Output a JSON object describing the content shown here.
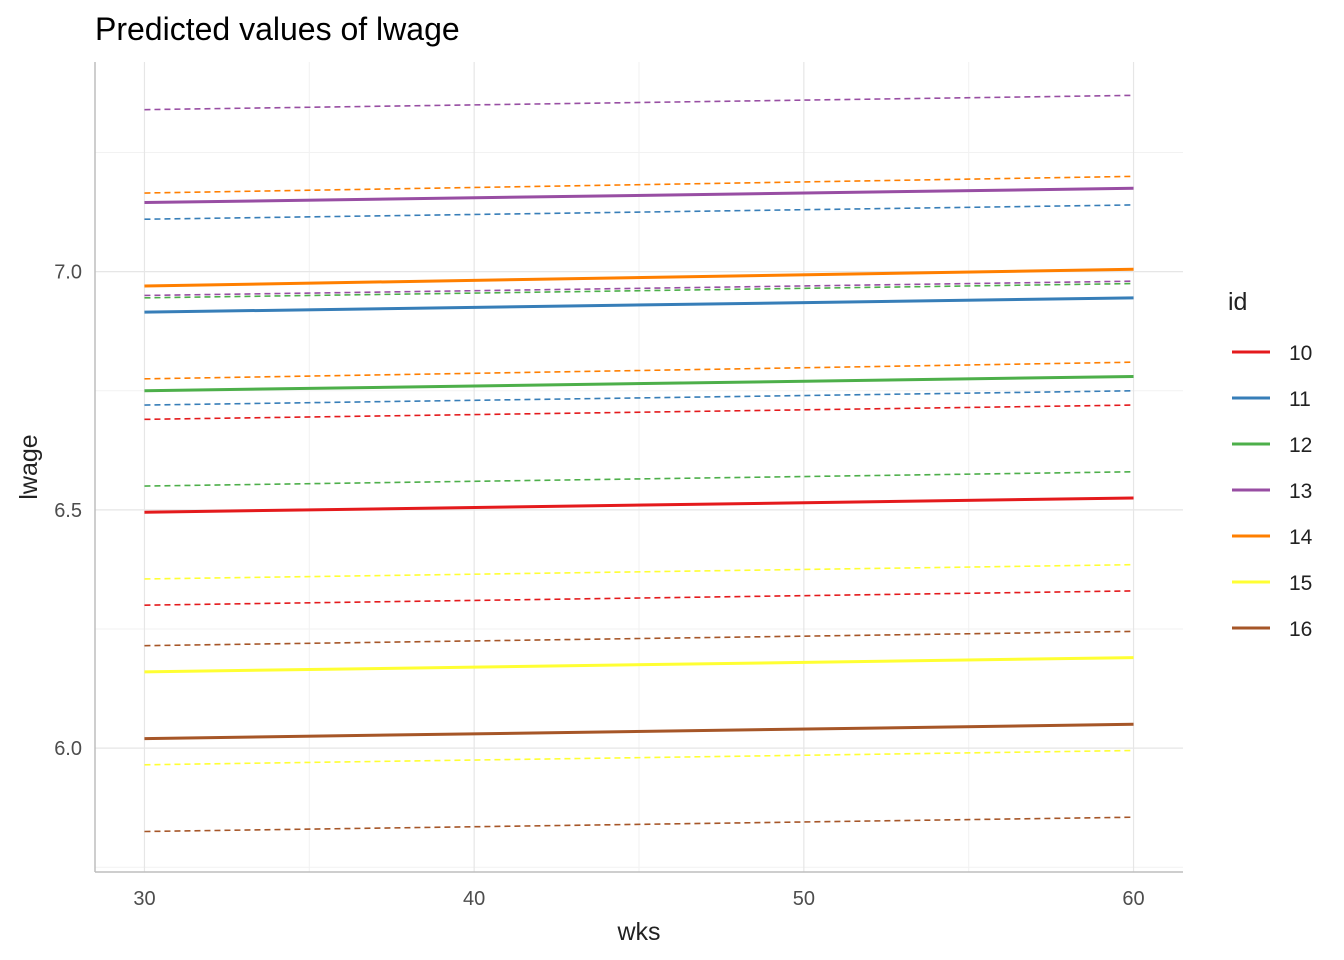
{
  "chart_data": {
    "type": "line",
    "title": "Predicted values of lwage",
    "xlabel": "wks",
    "ylabel": "lwage",
    "xlim": [
      28.5,
      61.5
    ],
    "ylim": [
      5.74,
      7.44
    ],
    "x_ticks": [
      30,
      40,
      50,
      60
    ],
    "y_ticks": [
      6.0,
      6.5,
      7.0
    ],
    "x_tick_labels": [
      "30",
      "40",
      "50",
      "60"
    ],
    "y_tick_labels": [
      "6.0",
      "6.5",
      "7.0"
    ],
    "grid": true,
    "legend": {
      "title": "id",
      "position": "right"
    },
    "x": [
      30,
      60
    ],
    "series": [
      {
        "name": "10",
        "color": "#E41A1C",
        "values": [
          6.495,
          6.525
        ],
        "ci_lower": [
          6.3,
          6.33
        ],
        "ci_upper": [
          6.69,
          6.72
        ]
      },
      {
        "name": "11",
        "color": "#377EB8",
        "values": [
          6.915,
          6.945
        ],
        "ci_lower": [
          6.72,
          6.75
        ],
        "ci_upper": [
          7.11,
          7.14
        ]
      },
      {
        "name": "12",
        "color": "#4DAF4A",
        "values": [
          6.75,
          6.78
        ],
        "ci_lower": [
          6.55,
          6.58
        ],
        "ci_upper": [
          6.945,
          6.975
        ]
      },
      {
        "name": "13",
        "color": "#984EA3",
        "values": [
          7.145,
          7.175
        ],
        "ci_lower": [
          6.95,
          6.98
        ],
        "ci_upper": [
          7.34,
          7.37
        ]
      },
      {
        "name": "14",
        "color": "#FF7F00",
        "values": [
          6.97,
          7.005
        ],
        "ci_lower": [
          6.775,
          6.81
        ],
        "ci_upper": [
          7.165,
          7.2
        ]
      },
      {
        "name": "15",
        "color": "#FFFF33",
        "values": [
          6.16,
          6.19
        ],
        "ci_lower": [
          5.965,
          5.995
        ],
        "ci_upper": [
          6.355,
          6.385
        ]
      },
      {
        "name": "16",
        "color": "#A65628",
        "values": [
          6.02,
          6.05
        ],
        "ci_lower": [
          5.825,
          5.855
        ],
        "ci_upper": [
          6.215,
          6.245
        ]
      }
    ]
  }
}
